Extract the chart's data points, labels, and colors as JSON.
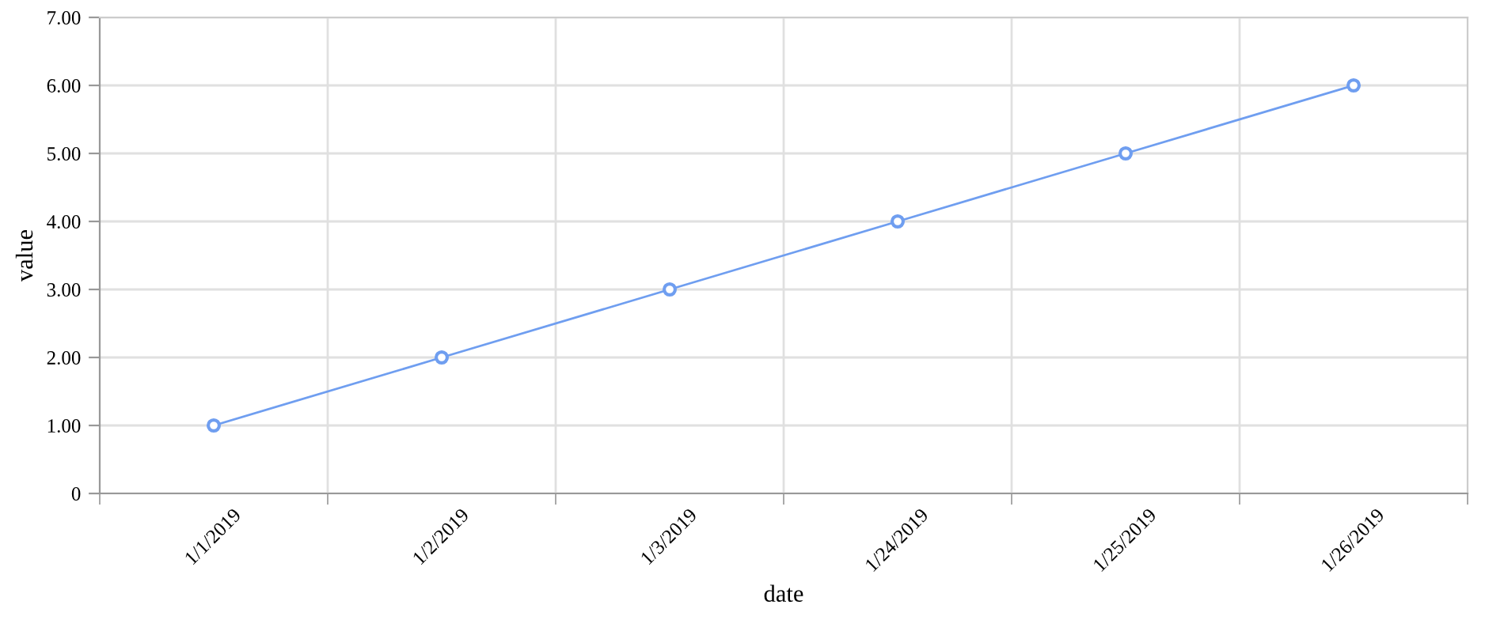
{
  "chart_data": {
    "type": "line",
    "xlabel": "date",
    "ylabel": "value",
    "categories": [
      "1/1/2019",
      "1/2/2019",
      "1/3/2019",
      "1/24/2019",
      "1/25/2019",
      "1/26/2019"
    ],
    "series": [
      {
        "color": "#6f9ef0",
        "values": [
          1,
          2,
          3,
          4,
          5,
          6
        ]
      }
    ],
    "ylim": [
      0,
      7
    ],
    "yticks": [
      0,
      {
        "value": 1,
        "label": "1.00"
      },
      {
        "value": 2,
        "label": "2.00"
      },
      {
        "value": 3,
        "label": "3.00"
      },
      {
        "value": 4,
        "label": "4.00"
      },
      {
        "value": 5,
        "label": "5.00"
      },
      {
        "value": 6,
        "label": "6.00"
      },
      {
        "value": 7,
        "label": "7.00"
      }
    ],
    "grid": true,
    "marker": "circle",
    "line_style": "solid"
  }
}
